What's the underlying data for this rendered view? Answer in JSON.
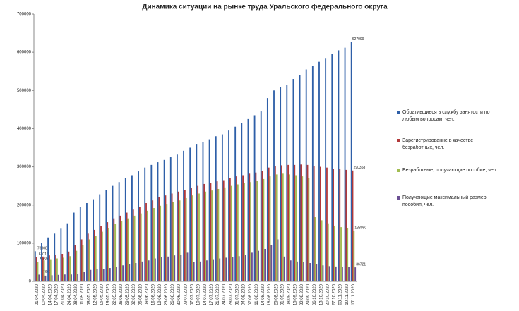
{
  "chart_data": {
    "type": "bar",
    "title": "Динамика ситуации на рынке труда Уральского федерального округа",
    "categories": [
      "01.04.2020",
      "10.04.2020",
      "14.04.2020",
      "17.04.2020",
      "21.04.2020",
      "24.04.2020",
      "28.04.2020",
      "01.05.2020",
      "08.05.2020",
      "12.05.2020",
      "15.05.2020",
      "19.05.2020",
      "22.05.2020",
      "26.05.2020",
      "29.05.2020",
      "02.06.2020",
      "05.06.2020",
      "09.06.2020",
      "16.06.2020",
      "19.06.2020",
      "23.06.2020",
      "26.06.2020",
      "30.06.2020",
      "03.07.2020",
      "07.07.2020",
      "10.07.2020",
      "14.07.2020",
      "17.07.2020",
      "21.07.2020",
      "24.07.2020",
      "28.07.2020",
      "31.07.2020",
      "04.08.2020",
      "07.08.2020",
      "11.08.2020",
      "14.08.2020",
      "18.08.2020",
      "25.08.2020",
      "01.09.2020",
      "08.09.2020",
      "15.09.2020",
      "22.09.2020",
      "29.09.2020",
      "06.10.2020",
      "13.10.2020",
      "20.10.2020",
      "27.10.2020",
      "03.11.2020",
      "10.11.2020",
      "17.11.2020"
    ],
    "series": [
      {
        "name": "Обратившиеся в службу занятости по любым вопросам, чел.",
        "color": "#2e5fa8",
        "values": [
          78808,
          100000,
          115000,
          125000,
          138000,
          152000,
          180000,
          195000,
          205000,
          215000,
          228000,
          240000,
          250000,
          260000,
          270000,
          278000,
          288000,
          298000,
          305000,
          312000,
          318000,
          325000,
          332000,
          342000,
          350000,
          360000,
          365000,
          372000,
          380000,
          385000,
          395000,
          405000,
          415000,
          425000,
          435000,
          445000,
          480000,
          500000,
          508000,
          515000,
          530000,
          540000,
          555000,
          565000,
          575000,
          585000,
          595000,
          605000,
          612000,
          627099
        ]
      },
      {
        "name": "Зарегистрированне в качестве безработных, чел.",
        "color": "#b2393a",
        "values": [
          63016,
          65000,
          68000,
          70000,
          72000,
          78000,
          95000,
          110000,
          125000,
          135000,
          145000,
          155000,
          165000,
          172000,
          180000,
          188000,
          195000,
          205000,
          212000,
          220000,
          225000,
          230000,
          235000,
          240000,
          245000,
          250000,
          255000,
          258000,
          262000,
          265000,
          270000,
          275000,
          278000,
          282000,
          285000,
          290000,
          298000,
          302000,
          304000,
          305000,
          305000,
          306000,
          305000,
          302000,
          300000,
          298000,
          295000,
          294000,
          292000,
          290358
        ]
      },
      {
        "name": "Безработные, получающие пособие, чел.",
        "color": "#a2bd52",
        "values": [
          50592,
          55000,
          58000,
          60000,
          62000,
          66000,
          80000,
          95000,
          110000,
          120000,
          130000,
          140000,
          150000,
          158000,
          165000,
          172000,
          178000,
          185000,
          192000,
          198000,
          203000,
          208000,
          212000,
          218000,
          225000,
          230000,
          235000,
          238000,
          242000,
          246000,
          250000,
          254000,
          257000,
          260000,
          264000,
          268000,
          275000,
          280000,
          282000,
          280000,
          278000,
          275000,
          270000,
          168000,
          160000,
          152000,
          146000,
          142000,
          140000,
          133090
        ]
      },
      {
        "name": "Получающие максимальный размер пособия, чел.",
        "color": "#6b4f93",
        "values": [
          17660,
          15000,
          16000,
          17000,
          18000,
          18000,
          20000,
          25000,
          30000,
          32000,
          33000,
          35000,
          38000,
          42000,
          45000,
          48000,
          52000,
          55000,
          60000,
          63000,
          65000,
          68000,
          70000,
          75000,
          50000,
          52000,
          55000,
          58000,
          60000,
          62000,
          64000,
          66000,
          70000,
          75000,
          80000,
          85000,
          95000,
          110000,
          65000,
          55000,
          52000,
          50000,
          48000,
          45000,
          42000,
          40000,
          39000,
          38000,
          37000,
          36721
        ]
      }
    ],
    "ylim": [
      0,
      700000
    ],
    "yticks": [
      0,
      100000,
      200000,
      300000,
      400000,
      500000,
      600000,
      700000
    ],
    "grid": false,
    "legend": "right"
  }
}
